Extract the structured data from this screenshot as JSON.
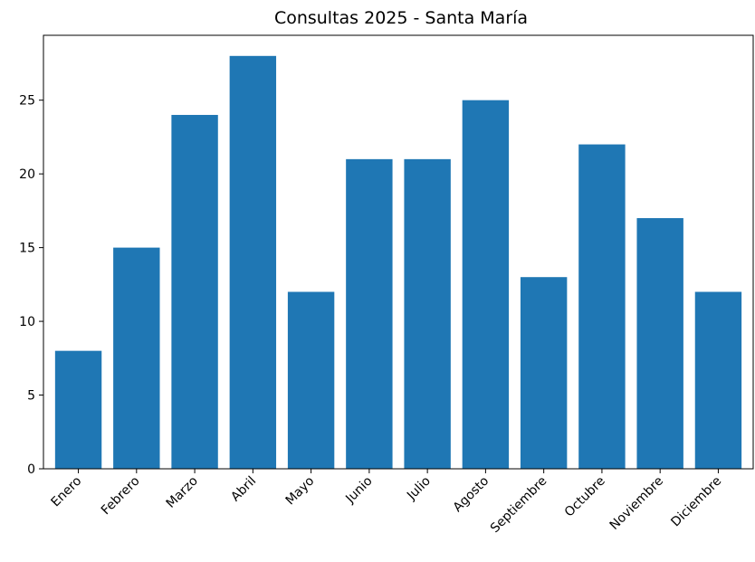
{
  "chart_data": {
    "type": "bar",
    "title": "Consultas 2025 - Santa María",
    "xlabel": "",
    "ylabel": "",
    "categories": [
      "Enero",
      "Febrero",
      "Marzo",
      "Abril",
      "Mayo",
      "Junio",
      "Julio",
      "Agosto",
      "Septiembre",
      "Octubre",
      "Noviembre",
      "Diciembre"
    ],
    "values": [
      8,
      15,
      24,
      28,
      12,
      21,
      21,
      25,
      13,
      22,
      17,
      12
    ],
    "ylim": [
      0,
      29.4
    ],
    "yticks": [
      0,
      5,
      10,
      15,
      20,
      25
    ],
    "bar_color": "#1f77b4",
    "grid": false,
    "legend": "none"
  }
}
